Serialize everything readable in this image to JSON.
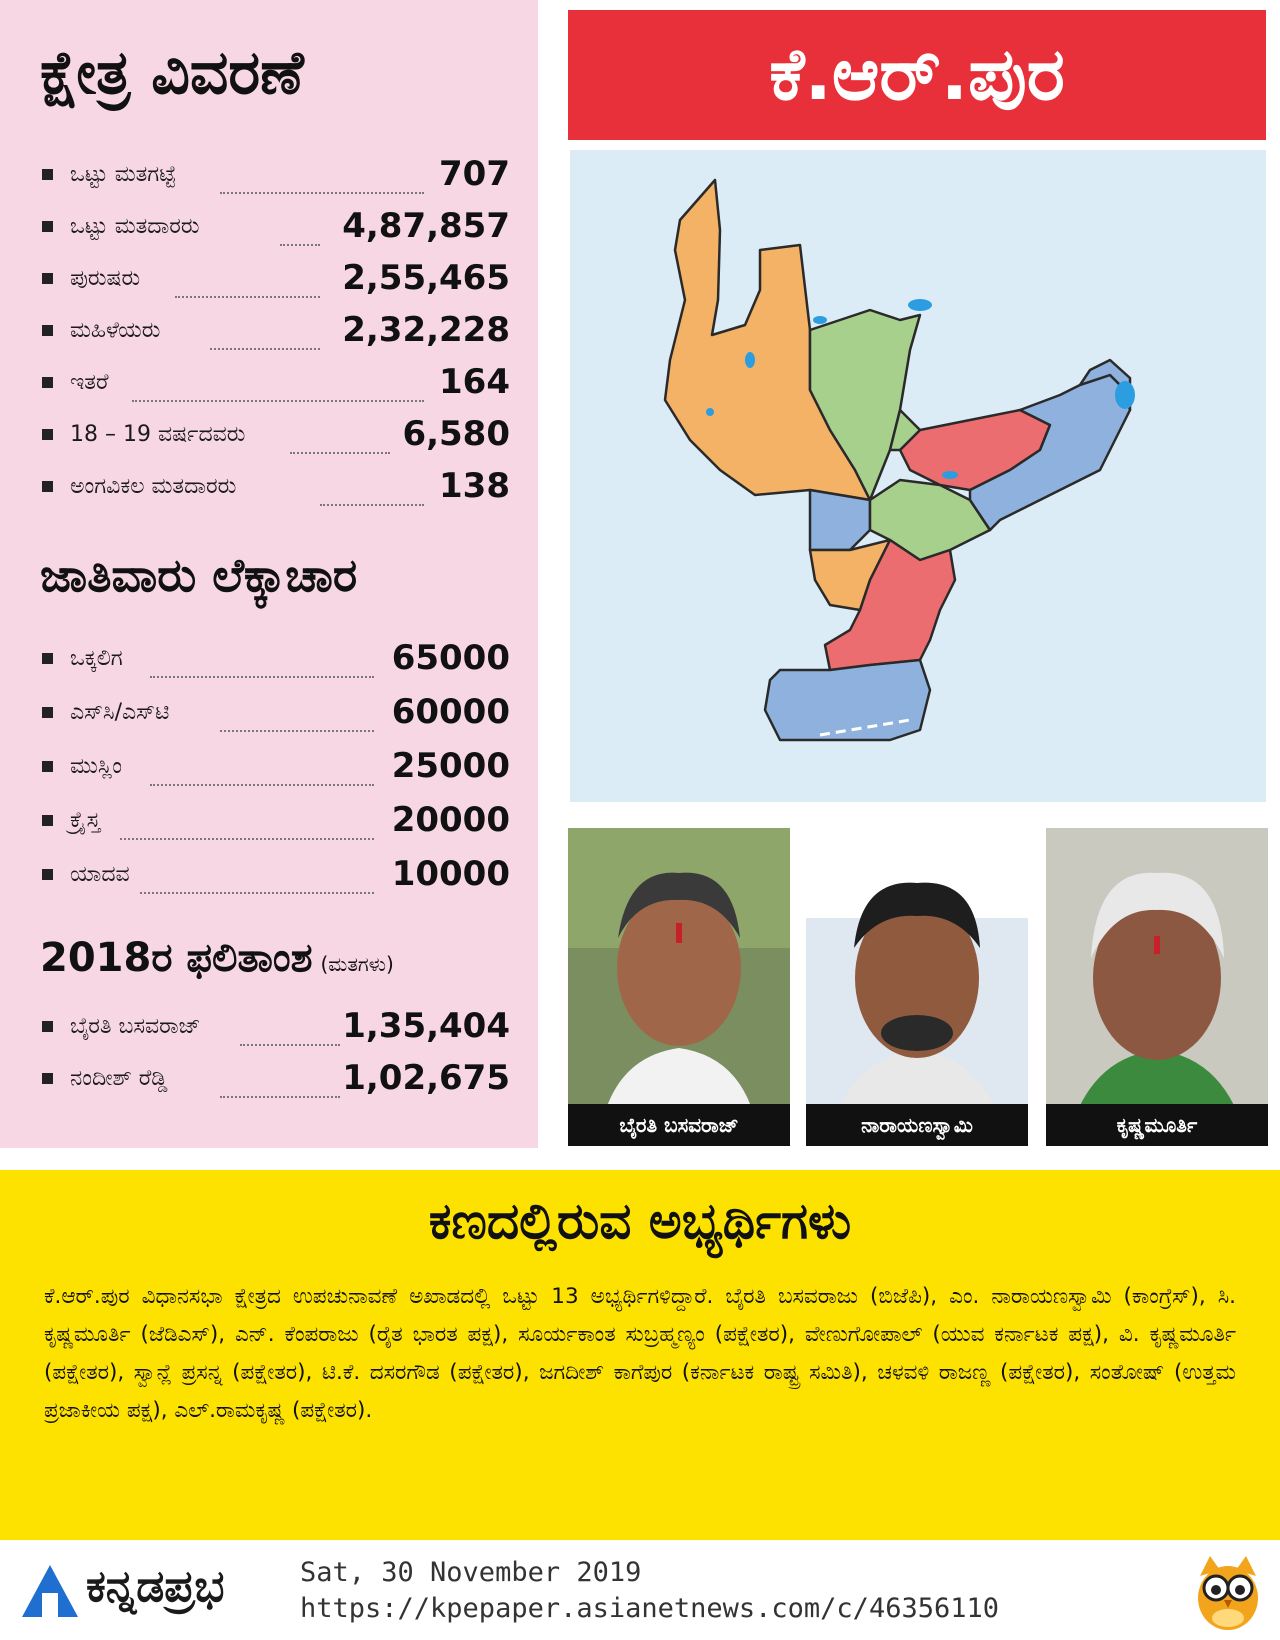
{
  "constituency": {
    "banner_title": "ಕೆ.ಆರ್.ಪುರ"
  },
  "details": {
    "title": "ಕ್ಷೇತ್ರ ವಿವರಣೆ",
    "rows": [
      {
        "label": "ಒಟ್ಟು ಮತಗಟ್ಟೆ",
        "value": "707"
      },
      {
        "label": "ಒಟ್ಟು ಮತದಾರರು",
        "value": "4,87,857"
      },
      {
        "label": "ಪುರುಷರು",
        "value": "2,55,465"
      },
      {
        "label": "ಮಹಿಳೆಯರು",
        "value": "2,32,228"
      },
      {
        "label": "ಇತರೆ",
        "value": "164"
      },
      {
        "label": "18 – 19 ವರ್ಷದವರು",
        "value": "6,580"
      },
      {
        "label": "ಅಂಗವಿಕಲ ಮತದಾರರು",
        "value": "138"
      }
    ]
  },
  "caste": {
    "title": "ಜಾತಿವಾರು ಲೆಕ್ಕಾಚಾರ",
    "rows": [
      {
        "label": "ಒಕ್ಕಲಿಗ",
        "value": "65000"
      },
      {
        "label": "ಎಸ್‌ಸಿ/ಎಸ್‌ಟಿ",
        "value": "60000"
      },
      {
        "label": "ಮುಸ್ಲಿಂ",
        "value": "25000"
      },
      {
        "label": "ಕ್ರೈಸ್ತ",
        "value": "20000"
      },
      {
        "label": "ಯಾದವ",
        "value": "10000"
      }
    ]
  },
  "result2018": {
    "title": "2018ರ ಫಲಿತಾಂಶ",
    "unit": "(ಮತಗಳು)",
    "rows": [
      {
        "label": "ಬೈರತಿ ಬಸವರಾಜ್",
        "value": "1,35,404"
      },
      {
        "label": "ನಂದೀಶ್ ರೆಡ್ಡಿ",
        "value": "1,02,675"
      }
    ]
  },
  "candidates_photos": [
    {
      "caption": "ಬೈರತಿ ಬಸವರಾಜ್"
    },
    {
      "caption": "ನಾರಾಯಣಸ್ವಾಮಿ"
    },
    {
      "caption": "ಕೃಷ್ಣಮೂರ್ತಿ"
    }
  ],
  "contest": {
    "title": "ಕಣದಲ್ಲಿರುವ ಅಭ್ಯರ್ಥಿಗಳು",
    "body": "ಕೆ.ಆರ್.ಪುರ ವಿಧಾನಸಭಾ ಕ್ಷೇತ್ರದ ಉಪಚುನಾವಣೆ ಅಖಾಡದಲ್ಲಿ ಒಟ್ಟು 13 ಅಭ್ಯರ್ಥಿಗಳಿದ್ದಾರೆ. ಬೈರತಿ ಬಸವರಾಜು (ಬಿಜೆಪಿ), ಎಂ. ನಾರಾಯಣಸ್ವಾಮಿ (ಕಾಂಗ್ರೆಸ್), ಸಿ. ಕೃಷ್ಣಮೂರ್ತಿ (ಜೆಡಿಎಸ್), ಎನ್. ಕೆಂಪರಾಜು (ರೈತ ಭಾರತ ಪಕ್ಷ), ಸೂರ್ಯಕಾಂತ ಸುಬ್ರಹ್ಮಣ್ಯಂ (ಪಕ್ಷೇತರ), ವೇಣುಗೋಪಾಲ್ (ಯುವ ಕರ್ನಾಟಕ ಪಕ್ಷ), ವಿ. ಕೃಷ್ಣಮೂರ್ತಿ (ಪಕ್ಷೇತರ), ಸ್ವಾನ್ಲೆ ಪ್ರಸನ್ನ (ಪಕ್ಷೇತರ), ಟಿ.ಕೆ. ದಸರಗೌಡ (ಪಕ್ಷೇತರ), ಜಗದೀಶ್ ಕಾಗೆಪುರ (ಕರ್ನಾಟಕ ರಾಷ್ಟ್ರ ಸಮಿತಿ), ಚಳವಳಿ ರಾಜಣ್ಣ (ಪಕ್ಷೇತರ), ಸಂತೋಷ್ (ಉತ್ತಮ ಪ್ರಜಾಕೀಯ ಪಕ್ಷ), ಎಲ್.ರಾಮಕೃಷ್ಣ (ಪಕ್ಷೇತರ)."
  },
  "footer": {
    "brand": "ಕನ್ನಡಪ್ರಭ",
    "date": "Sat, 30 November 2019",
    "url": "https://kpepaper.asianetnews.com/c/46356110"
  },
  "colors": {
    "pink_panel": "#f6d7e3",
    "banner_red": "#e8303a",
    "yellow_box": "#fde200",
    "map_bg": "#dcecf6",
    "ward_orange": "#f3b266",
    "ward_green": "#a8d08d",
    "ward_blue": "#8eb2dd",
    "ward_red": "#ec6d6f",
    "water": "#2b9de0",
    "logo_blue": "#1f6fd1"
  },
  "icons": [
    "owl-mascot-icon",
    "asianet-logo-icon",
    "bullet-square-icon"
  ]
}
